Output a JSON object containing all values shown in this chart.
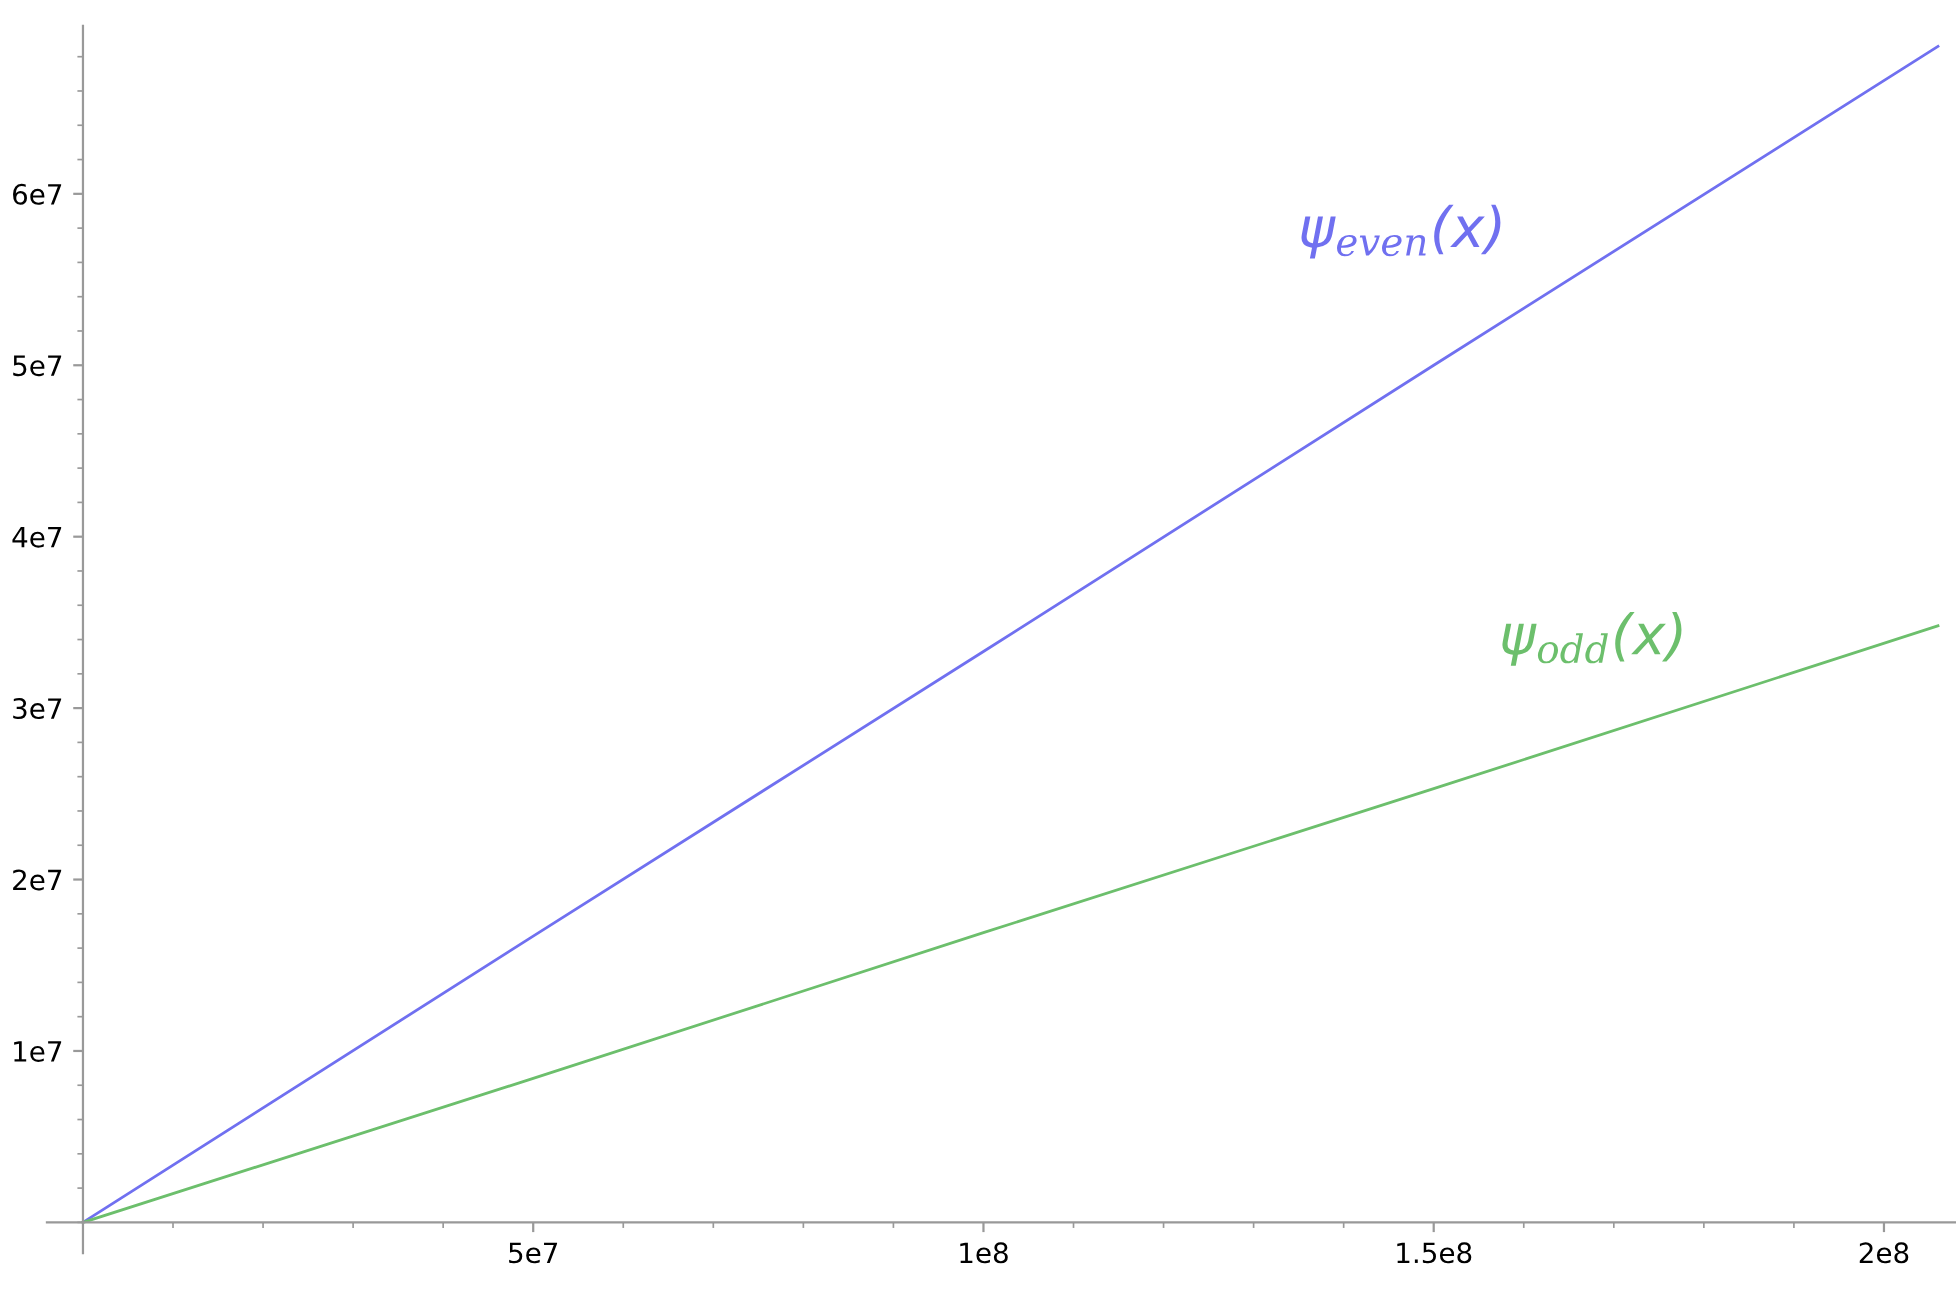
{
  "chart_data": {
    "type": "line",
    "x": [
      0,
      50000000,
      100000000,
      150000000,
      206000000
    ],
    "series": [
      {
        "name": "ψ$_{even}$(x)",
        "color": "#7070f0",
        "values": [
          0,
          16700000,
          33300000,
          50000000,
          68600000
        ]
      },
      {
        "name": "ψ$_{odd}$(x)",
        "color": "#6cbf6c",
        "values": [
          0,
          8400000,
          16900000,
          25300000,
          34800000
        ]
      }
    ],
    "xlim": [
      -4000000,
      208000000
    ],
    "ylim": [
      -1800000,
      69800000
    ],
    "xticks": [
      {
        "value": 50000000,
        "label": "5e7"
      },
      {
        "value": 100000000,
        "label": "1e8"
      },
      {
        "value": 150000000,
        "label": "1.5e8"
      },
      {
        "value": 200000000,
        "label": "2e8"
      }
    ],
    "yticks": [
      {
        "value": 10000000,
        "label": "1e7"
      },
      {
        "value": 20000000,
        "label": "2e7"
      },
      {
        "value": 30000000,
        "label": "3e7"
      },
      {
        "value": 40000000,
        "label": "4e7"
      },
      {
        "value": 50000000,
        "label": "5e7"
      },
      {
        "value": 60000000,
        "label": "6e7"
      }
    ],
    "grid": false,
    "legend": false,
    "marker": "none",
    "line_style": "solid"
  }
}
